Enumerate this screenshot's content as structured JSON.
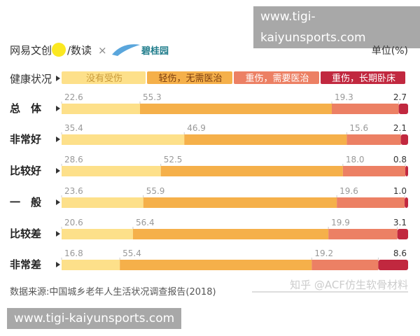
{
  "header": {
    "brand": "网易文创",
    "brand2": "/数读",
    "cross": "×",
    "partner": "碧桂园",
    "unit": "单位(%)"
  },
  "watermark": "www.tigi-kaiyunsports.com",
  "footer": {
    "source": "数据来源:中国城乡老年人生活状况调查报告(2018)",
    "credit": "知乎 @ACF仿生软骨材料"
  },
  "chart_data": {
    "type": "bar",
    "orientation": "horizontal",
    "stacked": true,
    "legend_title": "健康状况",
    "unit": "单位(%)",
    "categories": [
      "总　体",
      "非常好",
      "比较好",
      "一　般",
      "比较差",
      "非常差"
    ],
    "series": [
      {
        "name": "没有受伤",
        "color": "#fde08a",
        "values": [
          22.6,
          35.4,
          28.6,
          23.6,
          20.6,
          16.8
        ]
      },
      {
        "name": "轻伤，无需医治",
        "color": "#f5b04a",
        "values": [
          55.3,
          46.9,
          52.5,
          55.9,
          56.4,
          55.4
        ]
      },
      {
        "name": "重伤，需要医治",
        "color": "#ec8064",
        "values": [
          19.3,
          15.6,
          18.0,
          19.6,
          19.9,
          19.2
        ]
      },
      {
        "name": "重伤，长期卧床",
        "color": "#c1283f",
        "values": [
          2.7,
          2.1,
          0.8,
          1.0,
          3.1,
          8.6
        ]
      }
    ],
    "legend": "top",
    "grid": false
  }
}
